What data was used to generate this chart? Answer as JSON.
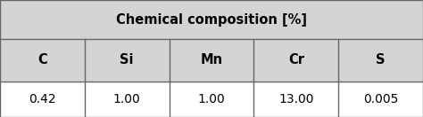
{
  "title": "Chemical composition [%]",
  "columns": [
    "C",
    "Si",
    "Mn",
    "Cr",
    "S"
  ],
  "values": [
    "0.42",
    "1.00",
    "1.00",
    "13.00",
    "0.005"
  ],
  "title_bg": "#d4d4d4",
  "header_bg": "#d4d4d4",
  "data_bg": "#ffffff",
  "border_color": "#666666",
  "title_fontsize": 10.5,
  "header_fontsize": 10.5,
  "data_fontsize": 10.0
}
